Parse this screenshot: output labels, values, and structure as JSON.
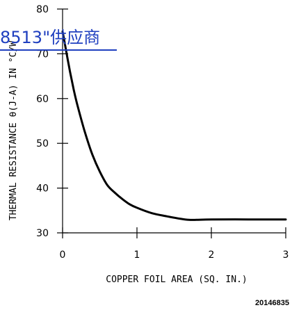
{
  "chart_data": {
    "type": "line",
    "xlabel": "COPPER FOIL AREA (SQ. IN.)",
    "ylabel": "THERMAL RESISTANCE θ(J-A) IN °C/W",
    "xlim": [
      0,
      3
    ],
    "ylim": [
      30,
      80
    ],
    "x_ticks": [
      0,
      1,
      2,
      3
    ],
    "y_ticks": [
      30,
      40,
      50,
      60,
      70,
      80
    ],
    "grid": false,
    "series": [
      {
        "x": [
          0,
          0.05,
          0.1,
          0.15,
          0.2,
          0.3,
          0.4,
          0.5,
          0.6,
          0.7,
          0.8,
          0.9,
          1.0,
          1.2,
          1.4,
          1.6,
          1.7,
          1.8,
          2.0,
          2.5,
          3.0
        ],
        "y": [
          75,
          70.5,
          66,
          62,
          58.5,
          52.5,
          47.5,
          43.7,
          40.7,
          39.0,
          37.6,
          36.4,
          35.6,
          34.4,
          33.7,
          33.1,
          32.9,
          32.9,
          33.0,
          33.0,
          33.0
        ]
      }
    ]
  },
  "figure_id": "20146835",
  "watermark_text": "8513\"供应商"
}
